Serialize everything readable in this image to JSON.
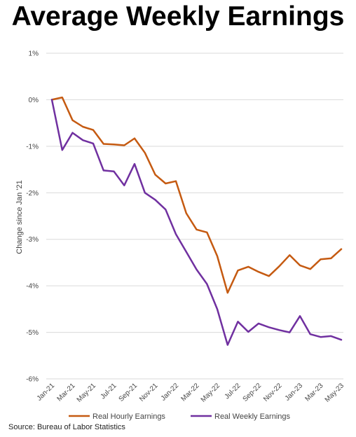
{
  "title": "Average Weekly Earnings",
  "source": "Source: Bureau of Labor Statistics",
  "chart_data": {
    "type": "line",
    "title": "Average Weekly Earnings",
    "xlabel": "",
    "ylabel": "Change since Jan '21",
    "ylim": [
      -6,
      1
    ],
    "yticks": [
      1,
      0,
      -1,
      -2,
      -3,
      -4,
      -5,
      -6
    ],
    "ytick_labels": [
      "1%",
      "0%",
      "-1%",
      "-2%",
      "-3%",
      "-4%",
      "-5%",
      "-6%"
    ],
    "grid": true,
    "legend": "bottom",
    "x": [
      "Jan-21",
      "Feb-21",
      "Mar-21",
      "Apr-21",
      "May-21",
      "Jun-21",
      "Jul-21",
      "Aug-21",
      "Sep-21",
      "Oct-21",
      "Nov-21",
      "Dec-21",
      "Jan-22",
      "Feb-22",
      "Mar-22",
      "Apr-22",
      "May-22",
      "Jun-22",
      "Jul-22",
      "Aug-22",
      "Sep-22",
      "Oct-22",
      "Nov-22",
      "Dec-22",
      "Jan-23",
      "Feb-23",
      "Mar-23",
      "Apr-23",
      "May-23"
    ],
    "xtick_labels": [
      "Jan-21",
      "Mar-21",
      "May-21",
      "Jul-21",
      "Sep-21",
      "Nov-21",
      "Jan-22",
      "Mar-22",
      "May-22",
      "Jul-22",
      "Sep-22",
      "Nov-22",
      "Jan-23",
      "Mar-23",
      "May-23"
    ],
    "series": [
      {
        "name": "Real Hourly Earnings",
        "color": "#C55A11",
        "values": [
          0.0,
          0.05,
          -0.44,
          -0.58,
          -0.65,
          -0.95,
          -0.96,
          -0.98,
          -0.83,
          -1.14,
          -1.61,
          -1.8,
          -1.75,
          -2.44,
          -2.79,
          -2.85,
          -3.36,
          -4.15,
          -3.67,
          -3.59,
          -3.7,
          -3.79,
          -3.58,
          -3.34,
          -3.56,
          -3.64,
          -3.43,
          -3.41,
          -3.21
        ]
      },
      {
        "name": "Real Weekly Earnings",
        "color": "#7030A0",
        "values": [
          0.0,
          -1.08,
          -0.71,
          -0.87,
          -0.94,
          -1.52,
          -1.54,
          -1.84,
          -1.38,
          -2.0,
          -2.15,
          -2.36,
          -2.89,
          -3.27,
          -3.65,
          -3.96,
          -4.5,
          -5.27,
          -4.77,
          -4.99,
          -4.81,
          -4.89,
          -4.95,
          -5.0,
          -4.65,
          -5.04,
          -5.1,
          -5.08,
          -5.16
        ]
      }
    ]
  }
}
